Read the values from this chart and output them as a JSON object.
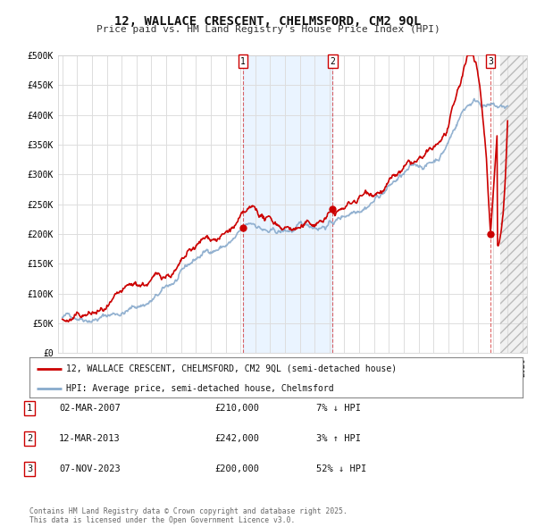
{
  "title": "12, WALLACE CRESCENT, CHELMSFORD, CM2 9QL",
  "subtitle": "Price paid vs. HM Land Registry's House Price Index (HPI)",
  "background_color": "#ffffff",
  "plot_bg_color": "#ffffff",
  "grid_color": "#dddddd",
  "ylabel_ticks": [
    "£0",
    "£50K",
    "£100K",
    "£150K",
    "£200K",
    "£250K",
    "£300K",
    "£350K",
    "£400K",
    "£450K",
    "£500K"
  ],
  "ytick_values": [
    0,
    50000,
    100000,
    150000,
    200000,
    250000,
    300000,
    350000,
    400000,
    450000,
    500000
  ],
  "ylim": [
    0,
    500000
  ],
  "xlim_start": 1994.7,
  "xlim_end": 2026.3,
  "sale_dates": [
    2007.17,
    2013.21,
    2023.85
  ],
  "sale_prices": [
    210000,
    242000,
    200000
  ],
  "sale_labels": [
    "1",
    "2",
    "3"
  ],
  "blue_span_start": 2007.17,
  "blue_span_end": 2013.21,
  "legend_line1": "12, WALLACE CRESCENT, CHELMSFORD, CM2 9QL (semi-detached house)",
  "legend_line2": "HPI: Average price, semi-detached house, Chelmsford",
  "table_rows": [
    {
      "num": "1",
      "date": "02-MAR-2007",
      "price": "£210,000",
      "change": "7% ↓ HPI"
    },
    {
      "num": "2",
      "date": "12-MAR-2013",
      "price": "£242,000",
      "change": "3% ↑ HPI"
    },
    {
      "num": "3",
      "date": "07-NOV-2023",
      "price": "£200,000",
      "change": "52% ↓ HPI"
    }
  ],
  "footer": "Contains HM Land Registry data © Crown copyright and database right 2025.\nThis data is licensed under the Open Government Licence v3.0.",
  "red_line_color": "#cc0000",
  "blue_line_color": "#88aacc",
  "hatch_start": 2024.5,
  "hatch_end": 2026.3
}
